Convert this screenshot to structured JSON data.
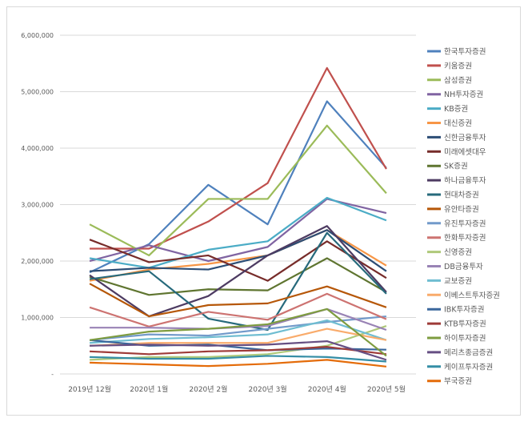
{
  "chart_data": {
    "type": "line",
    "title": "",
    "xlabel": "",
    "ylabel": "",
    "ylim": [
      0,
      6000000
    ],
    "y_ticks": [
      "-",
      "1,000,000",
      "2,000,000",
      "3,000,000",
      "4,000,000",
      "5,000,000",
      "6,000,000"
    ],
    "grid": true,
    "legend_position": "right",
    "categories": [
      "2019년 12월",
      "2020년 1월",
      "2020년 2월",
      "2020년 3월",
      "2020년 4월",
      "2020년 5월"
    ],
    "series": [
      {
        "name": "한국투자증권",
        "color": "#4f81bd",
        "values": [
          1800000,
          2300000,
          3350000,
          2650000,
          4830000,
          3650000
        ]
      },
      {
        "name": "키움증권",
        "color": "#c0504d",
        "values": [
          2220000,
          2220000,
          2700000,
          3380000,
          5420000,
          3630000
        ]
      },
      {
        "name": "삼성증권",
        "color": "#9bbb59",
        "values": [
          2650000,
          2100000,
          3100000,
          3100000,
          4400000,
          3200000
        ]
      },
      {
        "name": "NH투자증권",
        "color": "#8064a2",
        "values": [
          2000000,
          2280000,
          2000000,
          2250000,
          3100000,
          2850000
        ]
      },
      {
        "name": "KB증권",
        "color": "#4bacc6",
        "values": [
          2050000,
          1880000,
          2200000,
          2350000,
          3120000,
          2720000
        ]
      },
      {
        "name": "대신증권",
        "color": "#f79646",
        "values": [
          1650000,
          1850000,
          1950000,
          2100000,
          2550000,
          1920000
        ]
      },
      {
        "name": "신한금융투자",
        "color": "#2c4d75",
        "values": [
          1820000,
          1880000,
          1850000,
          2100000,
          2550000,
          1820000
        ]
      },
      {
        "name": "미래에셋대우",
        "color": "#772c2a",
        "values": [
          2380000,
          1980000,
          2100000,
          1650000,
          2350000,
          1700000
        ]
      },
      {
        "name": "SK증권",
        "color": "#5f7530",
        "values": [
          1720000,
          1400000,
          1500000,
          1480000,
          2050000,
          1450000
        ]
      },
      {
        "name": "하나금융투자",
        "color": "#4d3b62",
        "values": [
          1750000,
          1020000,
          1380000,
          2100000,
          2620000,
          1450000
        ]
      },
      {
        "name": "현대차증권",
        "color": "#276a7c",
        "values": [
          1680000,
          1820000,
          980000,
          780000,
          2500000,
          1420000
        ]
      },
      {
        "name": "유안타증권",
        "color": "#b65708",
        "values": [
          1600000,
          1020000,
          1220000,
          1250000,
          1550000,
          1180000
        ]
      },
      {
        "name": "유진투자증권",
        "color": "#729aca",
        "values": [
          600000,
          700000,
          680000,
          800000,
          920000,
          1020000
        ]
      },
      {
        "name": "한화투자증권",
        "color": "#cd7371",
        "values": [
          1180000,
          840000,
          1100000,
          960000,
          1420000,
          970000
        ]
      },
      {
        "name": "신영증권",
        "color": "#afc97a",
        "values": [
          250000,
          300000,
          300000,
          350000,
          500000,
          850000
        ]
      },
      {
        "name": "DB금융투자",
        "color": "#9983b5",
        "values": [
          820000,
          820000,
          800000,
          850000,
          1150000,
          780000
        ]
      },
      {
        "name": "교보증권",
        "color": "#6fbdd1",
        "values": [
          550000,
          620000,
          650000,
          700000,
          950000,
          600000
        ]
      },
      {
        "name": "이베스트투자증권",
        "color": "#f9ab6b",
        "values": [
          500000,
          550000,
          550000,
          550000,
          800000,
          600000
        ]
      },
      {
        "name": "IBK투자증권",
        "color": "#3a679c",
        "values": [
          600000,
          500000,
          520000,
          420000,
          450000,
          430000
        ]
      },
      {
        "name": "KTB투자증권",
        "color": "#9e3b38",
        "values": [
          400000,
          350000,
          400000,
          420000,
          480000,
          350000
        ]
      },
      {
        "name": "하이투자증권",
        "color": "#7e9c40",
        "values": [
          600000,
          750000,
          800000,
          880000,
          1150000,
          320000
        ]
      },
      {
        "name": "메리츠종금증권",
        "color": "#664f83",
        "values": [
          500000,
          520000,
          500000,
          520000,
          580000,
          250000
        ]
      },
      {
        "name": "케이프투자증권",
        "color": "#358ea6",
        "values": [
          300000,
          270000,
          270000,
          320000,
          300000,
          220000
        ]
      },
      {
        "name": "부국증권",
        "color": "#e46c0a",
        "values": [
          200000,
          170000,
          140000,
          180000,
          250000,
          130000
        ]
      }
    ]
  }
}
